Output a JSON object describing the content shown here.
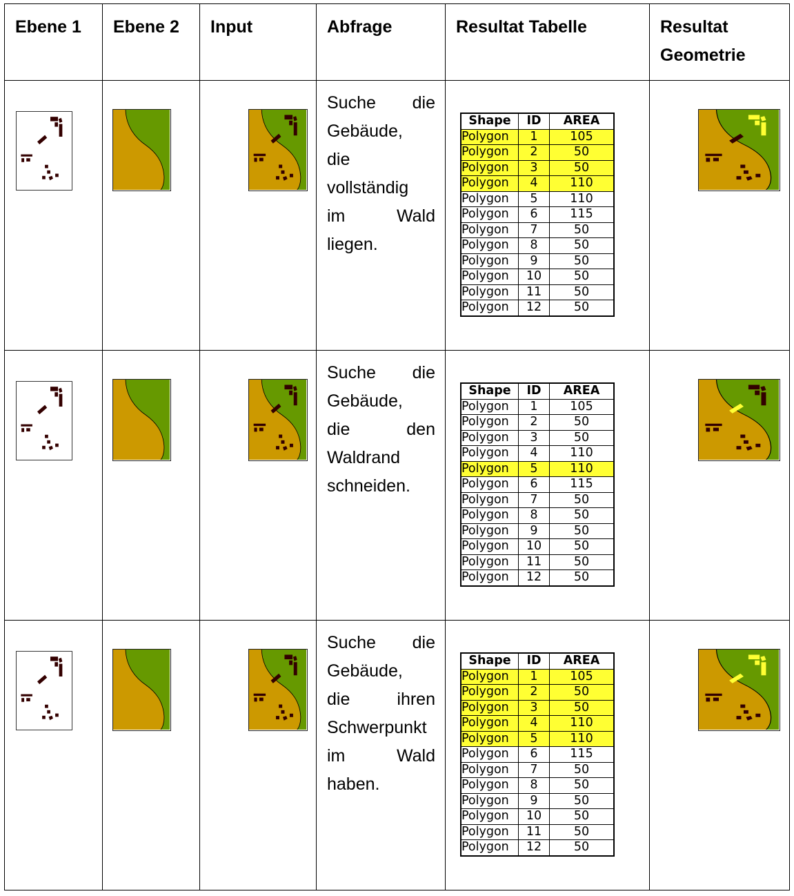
{
  "headers": [
    "Ebene 1",
    "Ebene 2",
    "Input",
    "Abfrage",
    "Resultat Tabelle",
    "Resultat Geometrie"
  ],
  "table_columns": [
    "Shape",
    "ID",
    "AREA"
  ],
  "result_rows": [
    {
      "shape": "Polygon",
      "id": "1",
      "area": "105"
    },
    {
      "shape": "Polygon",
      "id": "2",
      "area": "50"
    },
    {
      "shape": "Polygon",
      "id": "3",
      "area": "50"
    },
    {
      "shape": "Polygon",
      "id": "4",
      "area": "110"
    },
    {
      "shape": "Polygon",
      "id": "5",
      "area": "110"
    },
    {
      "shape": "Polygon",
      "id": "6",
      "area": "115"
    },
    {
      "shape": "Polygon",
      "id": "7",
      "area": "50"
    },
    {
      "shape": "Polygon",
      "id": "8",
      "area": "50"
    },
    {
      "shape": "Polygon",
      "id": "9",
      "area": "50"
    },
    {
      "shape": "Polygon",
      "id": "10",
      "area": "50"
    },
    {
      "shape": "Polygon",
      "id": "11",
      "area": "50"
    },
    {
      "shape": "Polygon",
      "id": "12",
      "area": "50"
    }
  ],
  "queries": [
    {
      "lines": [
        "Suche die",
        "Gebäude,",
        "die",
        "vollständig",
        "im Wald",
        "liegen."
      ],
      "highlighted_ids": [
        "1",
        "2",
        "3",
        "4"
      ]
    },
    {
      "lines": [
        "Suche die",
        "Gebäude,",
        "die den",
        "Waldrand",
        "schneiden."
      ],
      "highlighted_ids": [
        "5"
      ]
    },
    {
      "lines": [
        "Suche die",
        "Gebäude,",
        "die ihren",
        "Schwerpunkt",
        "im Wald",
        "haben."
      ],
      "highlighted_ids": [
        "1",
        "2",
        "3",
        "4",
        "5"
      ]
    }
  ],
  "colors": {
    "forest": "#669900",
    "open_land": "#cc9900",
    "building": "#330000",
    "highlight": "#ffff33"
  }
}
